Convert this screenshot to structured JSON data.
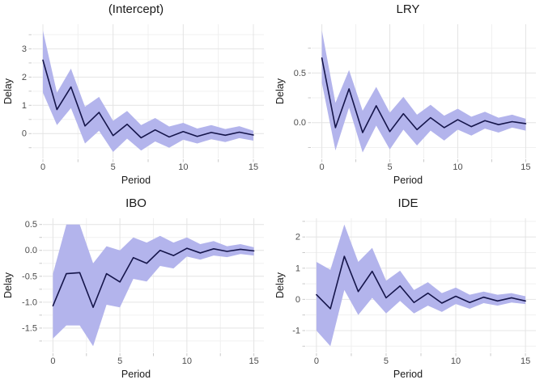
{
  "colors": {
    "background": "#ffffff",
    "band": "#b3b4ec",
    "line": "#15154a",
    "grid_major": "#e4e4e4",
    "grid_minor": "#f0f0f0",
    "tick_mark": "#c9c9c9",
    "tick_label": "#4d4d4d",
    "text": "#1a1a1a"
  },
  "chart_data": [
    {
      "type": "line",
      "title": "(Intercept)",
      "xlabel": "Period",
      "ylabel": "Delay",
      "legend": "none",
      "grid": "major+minor",
      "x": [
        0,
        1,
        2,
        3,
        4,
        5,
        6,
        7,
        8,
        9,
        10,
        11,
        12,
        13,
        14,
        15
      ],
      "line": [
        2.6,
        0.85,
        1.65,
        0.27,
        0.75,
        -0.07,
        0.33,
        -0.15,
        0.13,
        -0.12,
        0.07,
        -0.1,
        0.04,
        -0.06,
        0.05,
        -0.05
      ],
      "band_lower": [
        1.45,
        0.3,
        0.9,
        -0.35,
        0.1,
        -0.65,
        -0.18,
        -0.6,
        -0.28,
        -0.5,
        -0.22,
        -0.35,
        -0.2,
        -0.3,
        -0.16,
        -0.25
      ],
      "band_upper": [
        3.65,
        1.45,
        2.3,
        0.95,
        1.3,
        0.45,
        0.8,
        0.3,
        0.55,
        0.25,
        0.38,
        0.18,
        0.3,
        0.16,
        0.26,
        0.1
      ],
      "xlim": [
        -0.75,
        15.75
      ],
      "ylim": [
        -0.88,
        3.87
      ],
      "xticks": [
        0,
        5,
        10,
        15
      ],
      "xtick_labels": [
        "0",
        "5",
        "10",
        "15"
      ],
      "yticks": [
        0,
        1,
        2,
        3
      ],
      "ytick_labels": [
        "0",
        "1",
        "2",
        "3"
      ]
    },
    {
      "type": "line",
      "title": "LRY",
      "xlabel": "Period",
      "ylabel": "Delay",
      "legend": "none",
      "grid": "major+minor",
      "x": [
        0,
        1,
        2,
        3,
        4,
        5,
        6,
        7,
        8,
        9,
        10,
        11,
        12,
        13,
        14,
        15
      ],
      "line": [
        0.65,
        -0.05,
        0.34,
        -0.1,
        0.17,
        -0.09,
        0.09,
        -0.07,
        0.05,
        -0.05,
        0.03,
        -0.04,
        0.02,
        -0.02,
        0.01,
        -0.01
      ],
      "band_lower": [
        0.4,
        -0.28,
        0.15,
        -0.3,
        -0.03,
        -0.27,
        -0.07,
        -0.23,
        -0.08,
        -0.18,
        -0.07,
        -0.13,
        -0.06,
        -0.1,
        -0.05,
        -0.08
      ],
      "band_upper": [
        0.93,
        0.2,
        0.53,
        0.12,
        0.36,
        0.1,
        0.26,
        0.08,
        0.18,
        0.07,
        0.14,
        0.06,
        0.11,
        0.05,
        0.08,
        0.04
      ],
      "xlim": [
        -0.75,
        15.75
      ],
      "ylim": [
        -0.36,
        0.99
      ],
      "xticks": [
        0,
        5,
        10,
        15
      ],
      "xtick_labels": [
        "0",
        "5",
        "10",
        "15"
      ],
      "yticks": [
        0,
        0.5
      ],
      "ytick_labels": [
        "0.0",
        "0.5"
      ]
    },
    {
      "type": "line",
      "title": "IBO",
      "xlabel": "Period",
      "ylabel": "Delay",
      "legend": "none",
      "grid": "major+minor",
      "x": [
        0,
        1,
        2,
        3,
        4,
        5,
        6,
        7,
        8,
        9,
        10,
        11,
        12,
        13,
        14,
        15
      ],
      "line": [
        -1.07,
        -0.45,
        -0.43,
        -1.1,
        -0.45,
        -0.61,
        -0.14,
        -0.25,
        0.0,
        -0.1,
        0.04,
        -0.05,
        0.03,
        -0.02,
        0.02,
        -0.01
      ],
      "band_lower": [
        -1.7,
        -1.45,
        -1.45,
        -1.85,
        -1.05,
        -1.1,
        -0.55,
        -0.6,
        -0.3,
        -0.35,
        -0.12,
        -0.18,
        -0.1,
        -0.13,
        -0.07,
        -0.1
      ],
      "band_upper": [
        -0.45,
        0.5,
        0.5,
        -0.25,
        0.08,
        0.0,
        0.25,
        0.15,
        0.28,
        0.15,
        0.25,
        0.12,
        0.18,
        0.08,
        0.12,
        0.06
      ],
      "xlim": [
        -0.75,
        15.75
      ],
      "ylim": [
        -1.97,
        0.62
      ],
      "xticks": [
        0,
        5,
        10,
        15
      ],
      "xtick_labels": [
        "0",
        "5",
        "10",
        "15"
      ],
      "yticks": [
        -1.5,
        -1.0,
        -0.5,
        0,
        0.5
      ],
      "ytick_labels": [
        "-1.5",
        "-1.0",
        "-0.5",
        "0.0",
        "0.5"
      ]
    },
    {
      "type": "line",
      "title": "IDE",
      "xlabel": "Period",
      "ylabel": "Delay",
      "legend": "none",
      "grid": "major+minor",
      "x": [
        0,
        1,
        2,
        3,
        4,
        5,
        6,
        7,
        8,
        9,
        10,
        11,
        12,
        13,
        14,
        15
      ],
      "line": [
        0.15,
        -0.3,
        1.38,
        0.25,
        0.9,
        0.05,
        0.43,
        -0.1,
        0.2,
        -0.12,
        0.1,
        -0.1,
        0.07,
        -0.05,
        0.05,
        -0.05
      ],
      "band_lower": [
        -1.0,
        -1.5,
        0.3,
        -0.5,
        0.05,
        -0.45,
        -0.05,
        -0.45,
        -0.2,
        -0.4,
        -0.15,
        -0.3,
        -0.12,
        -0.2,
        -0.1,
        -0.15
      ],
      "band_upper": [
        1.2,
        0.95,
        2.4,
        1.2,
        1.65,
        0.6,
        0.92,
        0.3,
        0.55,
        0.2,
        0.38,
        0.15,
        0.25,
        0.15,
        0.2,
        0.1
      ],
      "xlim": [
        -0.75,
        15.75
      ],
      "ylim": [
        -1.7,
        2.6
      ],
      "xticks": [
        0,
        5,
        10,
        15
      ],
      "xtick_labels": [
        "0",
        "5",
        "10",
        "15"
      ],
      "yticks": [
        -1,
        0,
        1,
        2
      ],
      "ytick_labels": [
        "-1",
        "0",
        "1",
        "2"
      ]
    }
  ]
}
